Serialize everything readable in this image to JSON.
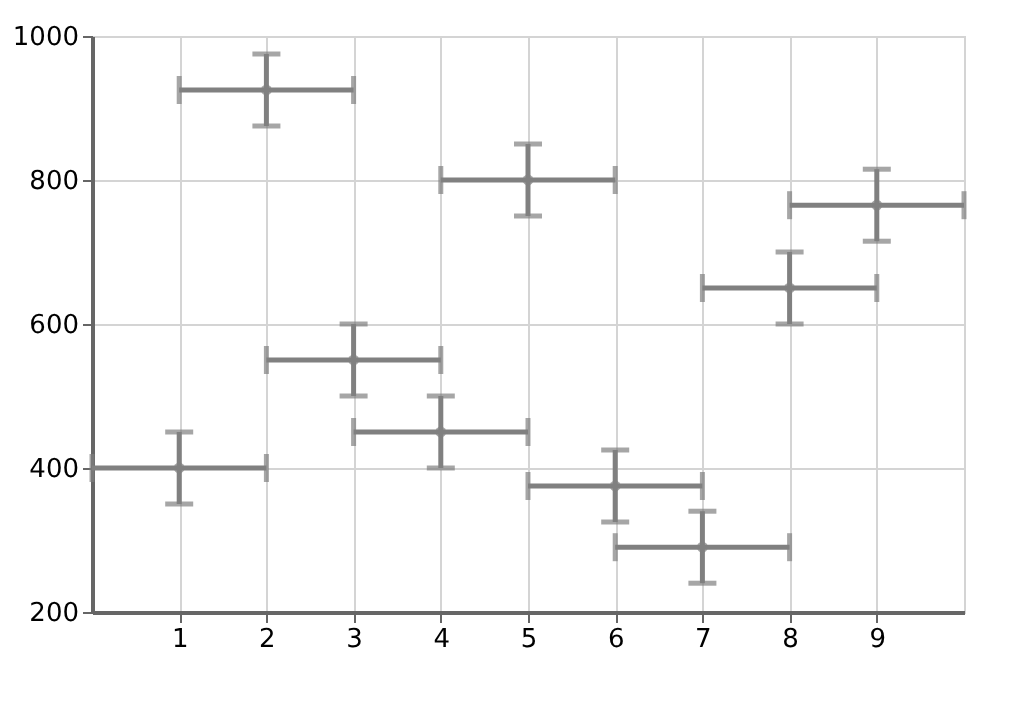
{
  "chart_data": {
    "type": "scatter",
    "marker": "circle",
    "grid": true,
    "x": [
      1,
      2,
      3,
      4,
      5,
      6,
      7,
      8,
      9
    ],
    "series": [
      {
        "color": "#808080",
        "values": [
          400,
          925,
          550,
          450,
          800,
          375,
          290,
          650,
          765
        ],
        "errors": [
          50,
          50,
          50,
          50,
          50,
          50,
          50,
          50,
          50
        ],
        "xerrors": [
          1,
          1,
          1,
          1,
          1,
          1,
          1,
          1,
          1
        ]
      }
    ],
    "xlim": [
      0,
      10
    ],
    "xticks": [
      1,
      2,
      3,
      4,
      5,
      6,
      7,
      8,
      9
    ],
    "ylim": [
      200,
      1000
    ],
    "yticks": [
      200,
      400,
      600,
      800,
      1000
    ]
  }
}
